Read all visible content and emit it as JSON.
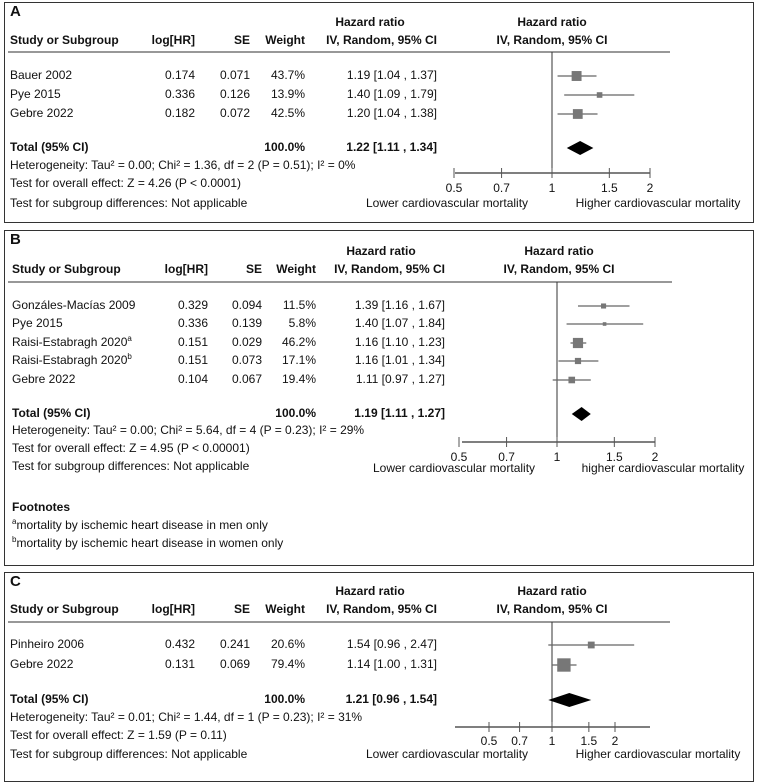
{
  "chart_data": [
    {
      "panel": "A",
      "type": "forest",
      "headers": {
        "study": "Study or Subgroup",
        "log_hr": "log[HR]",
        "se": "SE",
        "weight": "Weight",
        "hr_title": "Hazard ratio",
        "hr_method": "IV, Random, 95% CI",
        "plot_title": "Hazard ratio",
        "plot_method": "IV, Random, 95% CI"
      },
      "studies": [
        {
          "name": "Bauer 2002",
          "sup": "",
          "log_hr": "0.174",
          "se": "0.071",
          "weight": "43.7%",
          "ci_text": "1.19 [1.04 , 1.37]",
          "hr": 1.19,
          "lo": 1.04,
          "hi": 1.37
        },
        {
          "name": "Pye 2015",
          "sup": "",
          "log_hr": "0.336",
          "se": "0.126",
          "weight": "13.9%",
          "ci_text": "1.40 [1.09 , 1.79]",
          "hr": 1.4,
          "lo": 1.09,
          "hi": 1.79
        },
        {
          "name": "Gebre 2022",
          "sup": "",
          "log_hr": "0.182",
          "se": "0.072",
          "weight": "42.5%",
          "ci_text": "1.20 [1.04 , 1.38]",
          "hr": 1.2,
          "lo": 1.04,
          "hi": 1.38
        }
      ],
      "total": {
        "label": "Total (95% CI)",
        "weight": "100.0%",
        "ci_text": "1.22 [1.11 , 1.34]",
        "hr": 1.22,
        "lo": 1.11,
        "hi": 1.34
      },
      "heterogeneity": "Heterogeneity: Tau² = 0.00; Chi² = 1.36, df = 2 (P = 0.51); I² = 0%",
      "overall_effect": "Test for overall effect: Z = 4.26 (P < 0.0001)",
      "subgroup": "Test for subgroup differences: Not applicable",
      "axis": {
        "scale": "log",
        "ticks": [
          "0.5",
          "0.7",
          "1",
          "1.5",
          "2"
        ],
        "left_label": "Lower cardiovascular mortality",
        "right_label": "Higher cardiovascular mortality"
      }
    },
    {
      "panel": "B",
      "type": "forest",
      "headers": {
        "study": "Study or Subgroup",
        "log_hr": "log[HR]",
        "se": "SE",
        "weight": "Weight",
        "hr_title": "Hazard ratio",
        "hr_method": "IV, Random, 95% CI",
        "plot_title": "Hazard ratio",
        "plot_method": "IV, Random, 95% CI"
      },
      "studies": [
        {
          "name": "Gonzáles-Macías 2009",
          "sup": "",
          "log_hr": "0.329",
          "se": "0.094",
          "weight": "11.5%",
          "ci_text": "1.39 [1.16 , 1.67]",
          "hr": 1.39,
          "lo": 1.16,
          "hi": 1.67
        },
        {
          "name": "Pye 2015",
          "sup": "",
          "log_hr": "0.336",
          "se": "0.139",
          "weight": "5.8%",
          "ci_text": "1.40 [1.07 , 1.84]",
          "hr": 1.4,
          "lo": 1.07,
          "hi": 1.84
        },
        {
          "name": "Raisi-Estabragh 2020",
          "sup": "a",
          "log_hr": "0.151",
          "se": "0.029",
          "weight": "46.2%",
          "ci_text": "1.16 [1.10 , 1.23]",
          "hr": 1.16,
          "lo": 1.1,
          "hi": 1.23
        },
        {
          "name": "Raisi-Estabragh 2020",
          "sup": "b",
          "log_hr": "0.151",
          "se": "0.073",
          "weight": "17.1%",
          "ci_text": "1.16 [1.01 , 1.34]",
          "hr": 1.16,
          "lo": 1.01,
          "hi": 1.34
        },
        {
          "name": "Gebre 2022",
          "sup": "",
          "log_hr": "0.104",
          "se": "0.067",
          "weight": "19.4%",
          "ci_text": "1.11 [0.97 , 1.27]",
          "hr": 1.11,
          "lo": 0.97,
          "hi": 1.27
        }
      ],
      "total": {
        "label": "Total (95% CI)",
        "weight": "100.0%",
        "ci_text": "1.19 [1.11 , 1.27]",
        "hr": 1.19,
        "lo": 1.11,
        "hi": 1.27
      },
      "heterogeneity": "Heterogeneity: Tau² = 0.00; Chi² = 5.64, df = 4 (P = 0.23); I² = 29%",
      "overall_effect": "Test for overall effect: Z = 4.95 (P < 0.00001)",
      "subgroup": "Test for subgroup differences: Not applicable",
      "axis": {
        "scale": "log",
        "ticks": [
          "0.5",
          "0.7",
          "1",
          "1.5",
          "2"
        ],
        "left_label": "Lower cardiovascular mortality",
        "right_label": "higher cardiovascular mortality"
      },
      "footnotes": {
        "title": "Footnotes",
        "items": [
          {
            "sup": "a",
            "text": "mortality by ischemic heart disease in men only"
          },
          {
            "sup": "b",
            "text": "mortality by ischemic heart disease in women only"
          }
        ]
      }
    },
    {
      "panel": "C",
      "type": "forest",
      "headers": {
        "study": "Study or Subgroup",
        "log_hr": "log[HR]",
        "se": "SE",
        "weight": "Weight",
        "hr_title": "Hazard ratio",
        "hr_method": "IV, Random, 95% CI",
        "plot_title": "Hazard ratio",
        "plot_method": "IV, Random, 95% CI"
      },
      "studies": [
        {
          "name": "Pinheiro 2006",
          "sup": "",
          "log_hr": "0.432",
          "se": "0.241",
          "weight": "20.6%",
          "ci_text": "1.54 [0.96 , 2.47]",
          "hr": 1.54,
          "lo": 0.96,
          "hi": 2.47
        },
        {
          "name": "Gebre 2022",
          "sup": "",
          "log_hr": "0.131",
          "se": "0.069",
          "weight": "79.4%",
          "ci_text": "1.14 [1.00 , 1.31]",
          "hr": 1.14,
          "lo": 1.0,
          "hi": 1.31
        }
      ],
      "total": {
        "label": "Total (95% CI)",
        "weight": "100.0%",
        "ci_text": "1.21 [0.96 , 1.54]",
        "hr": 1.21,
        "lo": 0.96,
        "hi": 1.54
      },
      "heterogeneity": "Heterogeneity: Tau² = 0.01; Chi² = 1.44, df = 1 (P = 0.23); I² = 31%",
      "overall_effect": "Test for overall effect: Z = 1.59 (P = 0.11)",
      "subgroup": "Test for subgroup differences: Not applicable",
      "axis": {
        "scale": "log",
        "ticks": [
          "0.5",
          "0.7",
          "1",
          "1.5",
          "2"
        ],
        "left_label": "Lower cardiovascular mortality",
        "right_label": "Higher cardiovascular mortality"
      }
    }
  ],
  "colors": {
    "marker": "#777777",
    "ci_line": "#666666",
    "diamond": "#000000",
    "text": "#111111"
  }
}
